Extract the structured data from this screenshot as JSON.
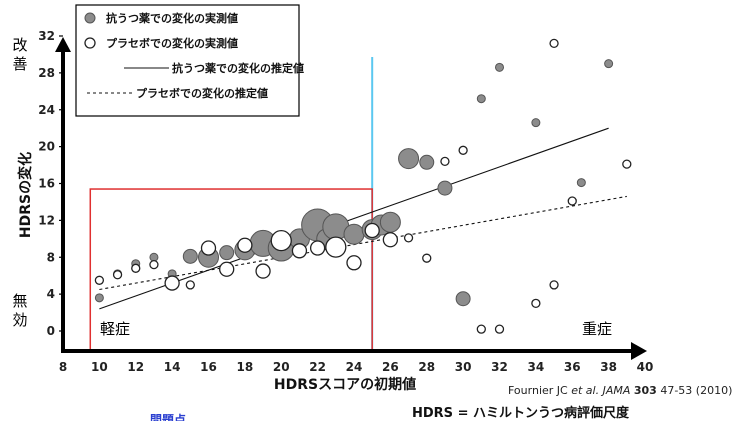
{
  "chart_data": {
    "type": "scatter",
    "xlabel": "HDRSスコアの初期値",
    "ylabel": "HDRSの変化",
    "xlim": [
      8,
      40
    ],
    "ylim": [
      0,
      32
    ],
    "xticks": [
      8,
      10,
      12,
      14,
      16,
      18,
      20,
      22,
      24,
      26,
      28,
      30,
      32,
      34,
      36,
      38,
      40
    ],
    "yticks": [
      0,
      4,
      8,
      12,
      16,
      20,
      24,
      28,
      32
    ],
    "y_end_labels": {
      "top": "改善",
      "bottom": "無効"
    },
    "threshold_x": 25,
    "threshold_color": "#5bc8f0",
    "regions": [
      {
        "label": "軽症",
        "x_range": [
          9.5,
          25
        ],
        "y_range": [
          0,
          15.4
        ],
        "color": "#e03030"
      },
      {
        "label": "重症"
      }
    ],
    "legend": [
      {
        "label": "抗うつ薬での変化の実測値",
        "kind": "filled-circle"
      },
      {
        "label": "プラセボでの変化の実測値",
        "kind": "open-circle"
      },
      {
        "label": "抗うつ薬での変化の推定値",
        "kind": "solid-line"
      },
      {
        "label": "プラセボでの変化の推定値",
        "kind": "dashed-line"
      }
    ],
    "series": [
      {
        "name": "抗うつ薬での変化の実測値",
        "color": "#8c8c8c",
        "points": [
          {
            "x": 10,
            "y": 3.6,
            "size": 1
          },
          {
            "x": 11,
            "y": 6.2,
            "size": 1
          },
          {
            "x": 12,
            "y": 7.3,
            "size": 1
          },
          {
            "x": 13,
            "y": 8.0,
            "size": 1
          },
          {
            "x": 14,
            "y": 6.2,
            "size": 1
          },
          {
            "x": 15,
            "y": 8.1,
            "size": 2
          },
          {
            "x": 16,
            "y": 8.0,
            "size": 3
          },
          {
            "x": 17,
            "y": 8.5,
            "size": 2
          },
          {
            "x": 18,
            "y": 8.8,
            "size": 3
          },
          {
            "x": 19,
            "y": 9.5,
            "size": 4
          },
          {
            "x": 20,
            "y": 9.0,
            "size": 4
          },
          {
            "x": 21,
            "y": 10.0,
            "size": 3
          },
          {
            "x": 22,
            "y": 11.5,
            "size": 5
          },
          {
            "x": 22.5,
            "y": 10.0,
            "size": 3
          },
          {
            "x": 23,
            "y": 11.3,
            "size": 4
          },
          {
            "x": 24,
            "y": 10.5,
            "size": 3
          },
          {
            "x": 25,
            "y": 11.0,
            "size": 3
          },
          {
            "x": 25.5,
            "y": 11.5,
            "size": 3
          },
          {
            "x": 26,
            "y": 11.8,
            "size": 3
          },
          {
            "x": 27,
            "y": 18.7,
            "size": 3
          },
          {
            "x": 28,
            "y": 18.3,
            "size": 2
          },
          {
            "x": 29,
            "y": 15.5,
            "size": 2
          },
          {
            "x": 30,
            "y": 3.5,
            "size": 2
          },
          {
            "x": 31,
            "y": 25.2,
            "size": 1
          },
          {
            "x": 32,
            "y": 28.6,
            "size": 1
          },
          {
            "x": 34,
            "y": 22.6,
            "size": 1
          },
          {
            "x": 36.5,
            "y": 16.1,
            "size": 1
          },
          {
            "x": 38,
            "y": 29.0,
            "size": 1
          }
        ]
      },
      {
        "name": "プラセボでの変化の実測値",
        "color": "#ffffff",
        "points": [
          {
            "x": 10,
            "y": 5.5,
            "size": 1
          },
          {
            "x": 11,
            "y": 6.1,
            "size": 1
          },
          {
            "x": 12,
            "y": 6.8,
            "size": 1
          },
          {
            "x": 13,
            "y": 7.2,
            "size": 1
          },
          {
            "x": 14,
            "y": 5.2,
            "size": 2
          },
          {
            "x": 15,
            "y": 5.0,
            "size": 1
          },
          {
            "x": 16,
            "y": 9.0,
            "size": 2
          },
          {
            "x": 17,
            "y": 6.7,
            "size": 2
          },
          {
            "x": 18,
            "y": 9.3,
            "size": 2
          },
          {
            "x": 19,
            "y": 6.5,
            "size": 2
          },
          {
            "x": 20,
            "y": 9.8,
            "size": 3
          },
          {
            "x": 21,
            "y": 8.7,
            "size": 2
          },
          {
            "x": 22,
            "y": 9.0,
            "size": 2
          },
          {
            "x": 23,
            "y": 9.1,
            "size": 3
          },
          {
            "x": 24,
            "y": 7.4,
            "size": 2
          },
          {
            "x": 25,
            "y": 10.9,
            "size": 2
          },
          {
            "x": 26,
            "y": 9.9,
            "size": 2
          },
          {
            "x": 27,
            "y": 10.1,
            "size": 1
          },
          {
            "x": 28,
            "y": 7.9,
            "size": 1
          },
          {
            "x": 29,
            "y": 18.4,
            "size": 1
          },
          {
            "x": 30,
            "y": 19.6,
            "size": 1
          },
          {
            "x": 31,
            "y": 0.2,
            "size": 1
          },
          {
            "x": 32,
            "y": 0.2,
            "size": 1
          },
          {
            "x": 34,
            "y": 3.0,
            "size": 1
          },
          {
            "x": 35,
            "y": 31.2,
            "size": 1
          },
          {
            "x": 35,
            "y": 5.0,
            "size": 1
          },
          {
            "x": 36,
            "y": 14.1,
            "size": 1
          },
          {
            "x": 39,
            "y": 18.1,
            "size": 1
          }
        ]
      }
    ],
    "fit_lines": [
      {
        "name": "抗うつ薬での変化の推定値",
        "style": "solid",
        "from": [
          10,
          2.4
        ],
        "to": [
          38,
          22.0
        ]
      },
      {
        "name": "プラセボでの変化の推定値",
        "style": "dashed",
        "from": [
          10,
          4.5
        ],
        "to": [
          39,
          14.6
        ]
      }
    ]
  },
  "citation": {
    "before": "Fournier JC ",
    "italic": "et al. JAMA",
    "space": " ",
    "bold": "303",
    "after": " 47-53 (2010)"
  },
  "definition": "HDRS = ハミルトンうつ病評価尺度",
  "cut_text": "問題点"
}
